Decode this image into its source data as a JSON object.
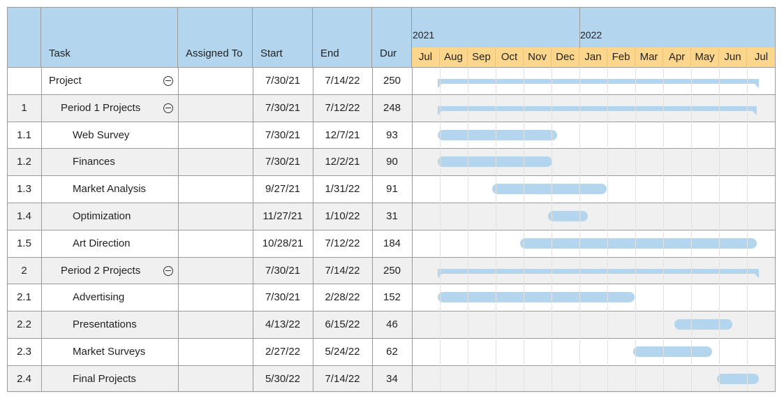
{
  "columns": {
    "task": "Task",
    "assigned": "Assigned To",
    "start": "Start",
    "end": "End",
    "dur": "Dur"
  },
  "chart_data": {
    "type": "gantt",
    "timeline_start": "2021-07-01",
    "years": [
      {
        "label": "2021",
        "start": "2021-07-01"
      },
      {
        "label": "2022",
        "start": "2022-01-01"
      }
    ],
    "months": [
      "Jul",
      "Aug",
      "Sep",
      "Oct",
      "Nov",
      "Dec",
      "Jan",
      "Feb",
      "Mar",
      "Apr",
      "May",
      "Jun",
      "Jul"
    ],
    "tasks": [
      {
        "id": "",
        "name": "Project",
        "level": 0,
        "summary": true,
        "assigned": "",
        "start": "7/30/21",
        "end": "7/14/22",
        "dur": "250",
        "start_iso": "2021-07-30",
        "end_iso": "2022-07-14"
      },
      {
        "id": "1",
        "name": "Period 1 Projects",
        "level": 1,
        "summary": true,
        "assigned": "",
        "start": "7/30/21",
        "end": "7/12/22",
        "dur": "248",
        "start_iso": "2021-07-30",
        "end_iso": "2022-07-12"
      },
      {
        "id": "1.1",
        "name": "Web Survey",
        "level": 2,
        "summary": false,
        "assigned": "",
        "start": "7/30/21",
        "end": "12/7/21",
        "dur": "93",
        "start_iso": "2021-07-30",
        "end_iso": "2021-12-07"
      },
      {
        "id": "1.2",
        "name": "Finances",
        "level": 2,
        "summary": false,
        "assigned": "",
        "start": "7/30/21",
        "end": "12/2/21",
        "dur": "90",
        "start_iso": "2021-07-30",
        "end_iso": "2021-12-02"
      },
      {
        "id": "1.3",
        "name": "Market Analysis",
        "level": 2,
        "summary": false,
        "assigned": "",
        "start": "9/27/21",
        "end": "1/31/22",
        "dur": "91",
        "start_iso": "2021-09-27",
        "end_iso": "2022-01-31"
      },
      {
        "id": "1.4",
        "name": "Optimization",
        "level": 2,
        "summary": false,
        "assigned": "",
        "start": "11/27/21",
        "end": "1/10/22",
        "dur": "31",
        "start_iso": "2021-11-27",
        "end_iso": "2022-01-10"
      },
      {
        "id": "1.5",
        "name": "Art Direction",
        "level": 2,
        "summary": false,
        "assigned": "",
        "start": "10/28/21",
        "end": "7/12/22",
        "dur": "184",
        "start_iso": "2021-10-28",
        "end_iso": "2022-07-12"
      },
      {
        "id": "2",
        "name": "Period 2 Projects",
        "level": 1,
        "summary": true,
        "assigned": "",
        "start": "7/30/21",
        "end": "7/14/22",
        "dur": "250",
        "start_iso": "2021-07-30",
        "end_iso": "2022-07-14"
      },
      {
        "id": "2.1",
        "name": "Advertising",
        "level": 2,
        "summary": false,
        "assigned": "",
        "start": "7/30/21",
        "end": "2/28/22",
        "dur": "152",
        "start_iso": "2021-07-30",
        "end_iso": "2022-02-28"
      },
      {
        "id": "2.2",
        "name": "Presentations",
        "level": 2,
        "summary": false,
        "assigned": "",
        "start": "4/13/22",
        "end": "6/15/22",
        "dur": "46",
        "start_iso": "2022-04-13",
        "end_iso": "2022-06-15"
      },
      {
        "id": "2.3",
        "name": "Market Surveys",
        "level": 2,
        "summary": false,
        "assigned": "",
        "start": "2/27/22",
        "end": "5/24/22",
        "dur": "62",
        "start_iso": "2022-02-27",
        "end_iso": "2022-05-24"
      },
      {
        "id": "2.4",
        "name": "Final Projects",
        "level": 2,
        "summary": false,
        "assigned": "",
        "start": "5/30/22",
        "end": "7/14/22",
        "dur": "34",
        "start_iso": "2022-05-30",
        "end_iso": "2022-07-14"
      }
    ],
    "colors": {
      "header": "#b3d6ee",
      "months": "#fcd68c",
      "bar": "#b3d6ee",
      "row_alt": "#f0f0f0"
    }
  }
}
